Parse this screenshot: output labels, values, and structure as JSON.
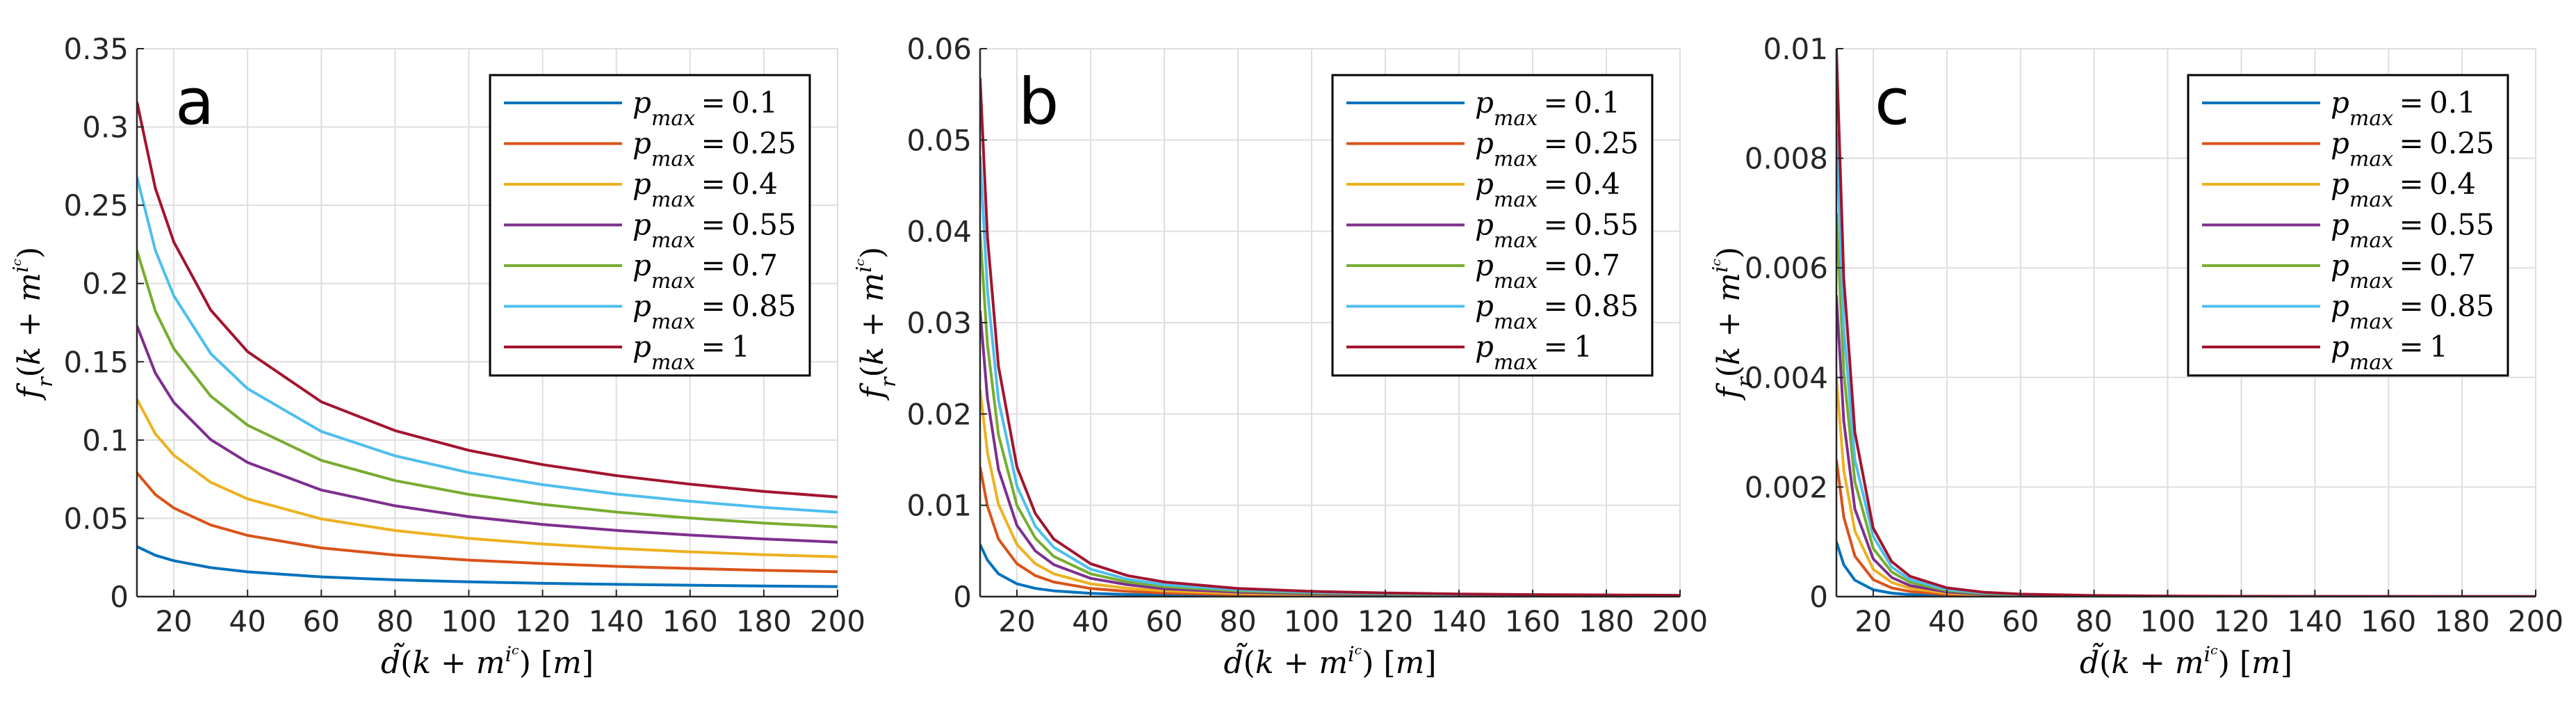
{
  "figure": {
    "series_colors": [
      "#0072BD",
      "#D95319",
      "#EDB120",
      "#7E2F8E",
      "#77AC30",
      "#4DBEEE",
      "#A2142F"
    ],
    "grid_color": "#dedede",
    "axis_color": "#262626"
  },
  "chart_data": [
    {
      "type": "line",
      "panel_label": "a",
      "xlabel": "d̃(k + mⁱᶜ) [m]",
      "ylabel": "fᵣ(k + mⁱᶜ)",
      "xlim": [
        10,
        200
      ],
      "ylim": [
        0,
        0.35
      ],
      "grid": true,
      "legend_position": "top-right",
      "x_ticks": [
        20,
        40,
        60,
        80,
        100,
        120,
        140,
        160,
        180,
        200
      ],
      "x_tick_labels": [
        "20",
        "40",
        "60",
        "80",
        "100",
        "120",
        "140",
        "160",
        "180",
        "200"
      ],
      "y_ticks": [
        0,
        0.05,
        0.1,
        0.15,
        0.2,
        0.25,
        0.3,
        0.35
      ],
      "y_tick_labels": [
        "0",
        "0.05",
        "0.1",
        "0.15",
        "0.2",
        "0.25",
        "0.3",
        "0.35"
      ],
      "x": [
        10,
        15,
        20,
        30,
        40,
        60,
        80,
        100,
        120,
        140,
        160,
        180,
        200
      ],
      "series": [
        {
          "name": "p_max = 0.1",
          "legend_label": "pmax = 0.1",
          "values": [
            0.032,
            0.0264,
            0.0229,
            0.0185,
            0.0158,
            0.0126,
            0.0107,
            0.0094,
            0.0085,
            0.0078,
            0.0073,
            0.0068,
            0.0064
          ]
        },
        {
          "name": "p_max = 0.25",
          "legend_label": "pmax = 0.25",
          "values": [
            0.079,
            0.0652,
            0.0566,
            0.0458,
            0.0391,
            0.0311,
            0.0265,
            0.0233,
            0.0211,
            0.0193,
            0.018,
            0.0168,
            0.0159
          ]
        },
        {
          "name": "p_max = 0.4",
          "legend_label": "pmax = 0.4",
          "values": [
            0.126,
            0.104,
            0.0903,
            0.073,
            0.0624,
            0.0496,
            0.0422,
            0.0372,
            0.0336,
            0.0308,
            0.0286,
            0.0268,
            0.0254
          ]
        },
        {
          "name": "p_max = 0.55",
          "legend_label": "pmax = 0.55",
          "values": [
            0.173,
            0.1428,
            0.124,
            0.1003,
            0.0857,
            0.0681,
            0.058,
            0.0511,
            0.0461,
            0.0423,
            0.0393,
            0.0368,
            0.0348
          ]
        },
        {
          "name": "p_max = 0.7",
          "legend_label": "pmax = 0.7",
          "values": [
            0.221,
            0.1824,
            0.1584,
            0.1281,
            0.1095,
            0.087,
            0.0741,
            0.0653,
            0.0589,
            0.054,
            0.0502,
            0.047,
            0.0445
          ]
        },
        {
          "name": "p_max = 0.85",
          "legend_label": "pmax = 0.85",
          "values": [
            0.268,
            0.2212,
            0.1921,
            0.1553,
            0.1328,
            0.1055,
            0.0899,
            0.0792,
            0.0715,
            0.0655,
            0.0609,
            0.057,
            0.0539
          ]
        },
        {
          "name": "p_max = 1",
          "legend_label": "pmax = 1",
          "values": [
            0.316,
            0.2608,
            0.2265,
            0.1831,
            0.1565,
            0.1244,
            0.106,
            0.0934,
            0.0843,
            0.0773,
            0.0718,
            0.0672,
            0.0636
          ]
        }
      ]
    },
    {
      "type": "line",
      "panel_label": "b",
      "xlabel": "d̃(k + mⁱᶜ) [m]",
      "ylabel": "fᵣ(k + mⁱᶜ)",
      "xlim": [
        10,
        200
      ],
      "ylim": [
        0,
        0.06
      ],
      "grid": true,
      "legend_position": "top-right",
      "x_ticks": [
        20,
        40,
        60,
        80,
        100,
        120,
        140,
        160,
        180,
        200
      ],
      "x_tick_labels": [
        "20",
        "40",
        "60",
        "80",
        "100",
        "120",
        "140",
        "160",
        "180",
        "200"
      ],
      "y_ticks": [
        0,
        0.01,
        0.02,
        0.03,
        0.04,
        0.05,
        0.06
      ],
      "y_tick_labels": [
        "0",
        "0.01",
        "0.02",
        "0.03",
        "0.04",
        "0.05",
        "0.06"
      ],
      "x": [
        10,
        12,
        15,
        20,
        25,
        30,
        40,
        50,
        60,
        80,
        100,
        120,
        140,
        160,
        180,
        200
      ],
      "series": [
        {
          "name": "p_max = 0.1",
          "legend_label": "pmax = 0.1",
          "values": [
            0.0057,
            0.004,
            0.0025,
            0.0014,
            0.0009,
            0.00063,
            0.00036,
            0.00023,
            0.00016,
            9e-05,
            6e-05,
            4e-05,
            3e-05,
            2.3e-05,
            1.8e-05,
            1.4e-05
          ]
        },
        {
          "name": "p_max = 0.25",
          "legend_label": "pmax = 0.25",
          "values": [
            0.0142,
            0.0099,
            0.0063,
            0.0036,
            0.0023,
            0.0016,
            0.00089,
            0.00057,
            0.00039,
            0.00022,
            0.00014,
            0.0001,
            7e-05,
            5.6e-05,
            4.4e-05,
            3.6e-05
          ]
        },
        {
          "name": "p_max = 0.4",
          "legend_label": "pmax = 0.4",
          "values": [
            0.0227,
            0.0158,
            0.0101,
            0.0057,
            0.0036,
            0.0025,
            0.0014,
            0.00091,
            0.00063,
            0.00035,
            0.00023,
            0.00016,
            0.00012,
            9e-05,
            7e-05,
            5.7e-05
          ]
        },
        {
          "name": "p_max = 0.55",
          "legend_label": "pmax = 0.55",
          "values": [
            0.0313,
            0.0217,
            0.0139,
            0.0078,
            0.005,
            0.0035,
            0.002,
            0.0013,
            0.00087,
            0.00049,
            0.00031,
            0.00022,
            0.00016,
            0.00012,
            0.0001,
            8e-05
          ]
        },
        {
          "name": "p_max = 0.7",
          "legend_label": "pmax = 0.7",
          "values": [
            0.0398,
            0.0276,
            0.0177,
            0.01,
            0.0064,
            0.0044,
            0.0025,
            0.0016,
            0.0011,
            0.00062,
            0.0004,
            0.00028,
            0.0002,
            0.00016,
            0.00012,
            0.0001
          ]
        },
        {
          "name": "p_max = 0.85",
          "legend_label": "pmax = 0.85",
          "values": [
            0.0483,
            0.0335,
            0.0215,
            0.0121,
            0.0077,
            0.0054,
            0.003,
            0.0019,
            0.0013,
            0.00075,
            0.00048,
            0.00034,
            0.00025,
            0.00019,
            0.00015,
            0.00012
          ]
        },
        {
          "name": "p_max = 1",
          "legend_label": "pmax = 1",
          "values": [
            0.0568,
            0.0394,
            0.0252,
            0.0142,
            0.0091,
            0.0063,
            0.0036,
            0.0023,
            0.0016,
            0.00089,
            0.00057,
            0.0004,
            0.00029,
            0.00022,
            0.00018,
            0.00014
          ]
        }
      ]
    },
    {
      "type": "line",
      "panel_label": "c",
      "xlabel": "d̃(k + mⁱᶜ) [m]",
      "ylabel": "fᵣ(k + mⁱᶜ)",
      "xlim": [
        10,
        200
      ],
      "ylim": [
        0,
        0.01
      ],
      "grid": true,
      "legend_position": "top-right",
      "x_ticks": [
        20,
        40,
        60,
        80,
        100,
        120,
        140,
        160,
        180,
        200
      ],
      "x_tick_labels": [
        "20",
        "40",
        "60",
        "80",
        "100",
        "120",
        "140",
        "160",
        "180",
        "200"
      ],
      "y_ticks": [
        0,
        0.002,
        0.004,
        0.006,
        0.008,
        0.01
      ],
      "y_tick_labels": [
        "0",
        "0.002",
        "0.004",
        "0.006",
        "0.008",
        "0.01"
      ],
      "x": [
        10,
        12,
        15,
        20,
        25,
        30,
        40,
        50,
        60,
        80,
        100,
        120,
        140,
        160,
        180,
        200
      ],
      "series": [
        {
          "name": "p_max = 0.1",
          "legend_label": "pmax = 0.1",
          "values": [
            0.001,
            0.00058,
            0.0003,
            0.000125,
            6.4e-05,
            3.7e-05,
            1.6e-05,
            8e-06,
            4.6e-06,
            2e-06,
            1e-06,
            6e-07,
            4e-07,
            2e-07,
            2e-07,
            1e-07
          ]
        },
        {
          "name": "p_max = 0.25",
          "legend_label": "pmax = 0.25",
          "values": [
            0.0025,
            0.00145,
            0.00074,
            0.00031,
            0.00016,
            9.3e-05,
            3.9e-05,
            2e-05,
            1.2e-05,
            4.9e-06,
            2.5e-06,
            1.4e-06,
            9e-07,
            6e-07,
            4e-07,
            3e-07
          ]
        },
        {
          "name": "p_max = 0.4",
          "legend_label": "pmax = 0.4",
          "values": [
            0.004,
            0.0023,
            0.0012,
            0.0005,
            0.00026,
            0.00015,
            6.3e-05,
            3.2e-05,
            1.9e-05,
            7.8e-06,
            4e-06,
            2.3e-06,
            1.5e-06,
            1e-06,
            7e-07,
            5e-07
          ]
        },
        {
          "name": "p_max = 0.55",
          "legend_label": "pmax = 0.55",
          "values": [
            0.0055,
            0.0032,
            0.0016,
            0.00069,
            0.00035,
            0.0002,
            8.6e-05,
            4.4e-05,
            2.5e-05,
            1.1e-05,
            5.5e-06,
            3.2e-06,
            2e-06,
            1.3e-06,
            9e-07,
            7e-07
          ]
        },
        {
          "name": "p_max = 0.7",
          "legend_label": "pmax = 0.7",
          "values": [
            0.007,
            0.0041,
            0.0021,
            0.00088,
            0.00045,
            0.00026,
            0.00011,
            5.6e-05,
            3.2e-05,
            1.4e-05,
            7e-06,
            4e-06,
            2.6e-06,
            1.7e-06,
            1.2e-06,
            9e-07
          ]
        },
        {
          "name": "p_max = 0.85",
          "legend_label": "pmax = 0.85",
          "values": [
            0.0085,
            0.0049,
            0.0025,
            0.0011,
            0.00054,
            0.00031,
            0.00013,
            6.8e-05,
            3.9e-05,
            1.7e-05,
            8.5e-06,
            4.9e-06,
            3.1e-06,
            2.1e-06,
            1.5e-06,
            1.1e-06
          ]
        },
        {
          "name": "p_max = 1",
          "legend_label": "pmax = 1",
          "values": [
            0.01,
            0.0058,
            0.003,
            0.00125,
            0.00064,
            0.00037,
            0.00016,
            8e-05,
            4.6e-05,
            2e-05,
            1e-05,
            5.8e-06,
            3.6e-06,
            2.4e-06,
            1.7e-06,
            1.3e-06
          ]
        }
      ]
    }
  ]
}
